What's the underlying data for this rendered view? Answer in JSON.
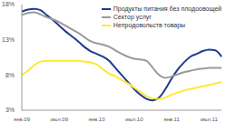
{
  "chart_data": {
    "type": "line",
    "categories": [
      "янв.09",
      null,
      null,
      null,
      null,
      null,
      "июл.09",
      null,
      null,
      null,
      null,
      null,
      "янв.10",
      null,
      null,
      null,
      null,
      null,
      "июл.10",
      null,
      null,
      null,
      null,
      null,
      "янв.11",
      null,
      null,
      null,
      null,
      null,
      "июл.11",
      null,
      null
    ],
    "series": [
      {
        "name": "Продукты питания без плодоовощей",
        "color": "#1f3a8f",
        "values": [
          17.0,
          17.3,
          17.4,
          17.2,
          16.5,
          15.8,
          15.0,
          14.2,
          13.5,
          12.8,
          12.0,
          11.4,
          11.0,
          10.6,
          10.0,
          9.0,
          8.0,
          7.0,
          6.0,
          5.2,
          4.6,
          4.4,
          4.8,
          6.0,
          7.5,
          8.8,
          9.8,
          10.6,
          11.0,
          11.4,
          11.6,
          11.5,
          10.6
        ]
      },
      {
        "name": "Сектор услуг",
        "color": "#9a9a9a",
        "values": [
          16.5,
          16.8,
          16.9,
          16.6,
          16.2,
          15.9,
          15.5,
          15.0,
          14.5,
          14.0,
          13.4,
          12.8,
          12.5,
          12.3,
          12.0,
          11.5,
          11.0,
          10.6,
          10.3,
          10.2,
          10.0,
          9.0,
          8.0,
          7.6,
          7.8,
          8.1,
          8.4,
          8.6,
          8.8,
          8.9,
          9.0,
          9.0,
          9.0
        ]
      },
      {
        "name": "Непродовольств товары",
        "color": "#ffe933",
        "values": [
          8.0,
          8.6,
          9.4,
          9.9,
          10.0,
          10.0,
          10.0,
          10.0,
          10.0,
          10.0,
          9.9,
          9.8,
          9.5,
          8.8,
          8.2,
          7.8,
          7.3,
          6.8,
          6.2,
          5.6,
          5.0,
          4.7,
          4.6,
          4.8,
          5.2,
          5.5,
          5.8,
          6.0,
          6.2,
          6.4,
          6.6,
          6.8,
          7.0
        ]
      }
    ],
    "ylim": [
      3,
      18
    ],
    "yticks": [
      {
        "value": 3,
        "label": "3%"
      },
      {
        "value": 8,
        "label": "8%"
      },
      {
        "value": 13,
        "label": "13%"
      },
      {
        "value": 18,
        "label": "18%"
      }
    ],
    "grid": false,
    "legend": "top-right"
  }
}
